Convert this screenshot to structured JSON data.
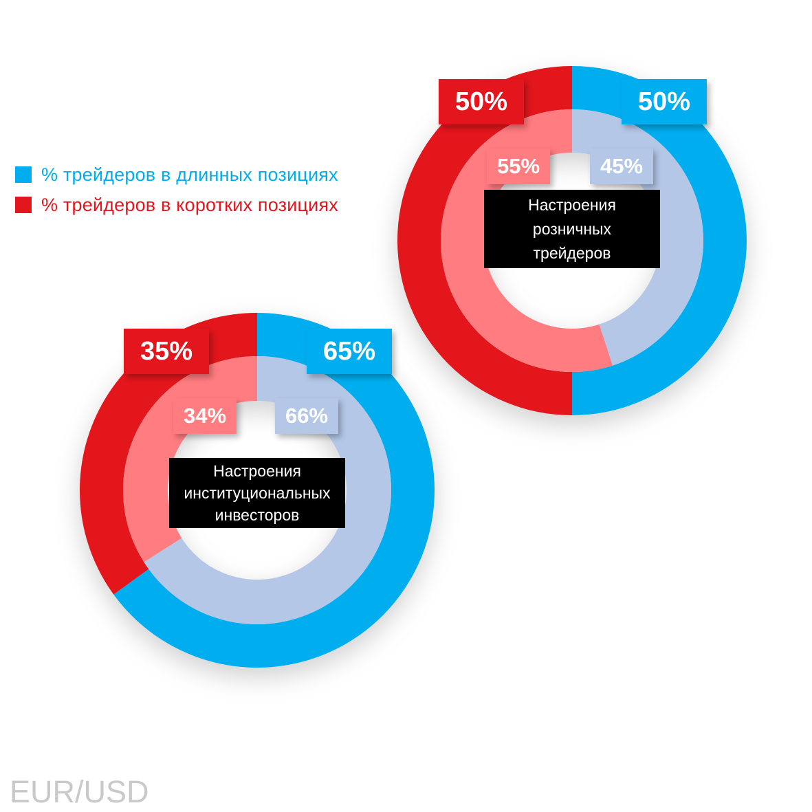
{
  "legend": {
    "long_label": "% трейдеров в длинных позициях",
    "short_label": "% трейдеров в коротких позициях"
  },
  "colors": {
    "long_outer": "#00aeef",
    "long_inner": "#b4c7e7",
    "short_outer": "#e3161e",
    "short_inner": "#ff7c80"
  },
  "footer": "EUR/USD",
  "chart_data": [
    {
      "type": "pie",
      "title": "Настроения розничных трейдеров",
      "title_lines": [
        "Настроения",
        "розничных",
        "трейдеров"
      ],
      "rings": [
        {
          "ring": "outer",
          "long": 50,
          "short": 50,
          "long_label": "50%",
          "short_label": "50%"
        },
        {
          "ring": "inner",
          "long": 45,
          "short": 55,
          "long_label": "45%",
          "short_label": "55%"
        }
      ]
    },
    {
      "type": "pie",
      "title": "Настроения институциональных инвесторов",
      "title_lines": [
        "Настроения",
        "институциональных",
        "инвесторов"
      ],
      "rings": [
        {
          "ring": "outer",
          "long": 65,
          "short": 35,
          "long_label": "65%",
          "short_label": "35%"
        },
        {
          "ring": "inner",
          "long": 66,
          "short": 34,
          "long_label": "66%",
          "short_label": "34%"
        }
      ]
    }
  ]
}
